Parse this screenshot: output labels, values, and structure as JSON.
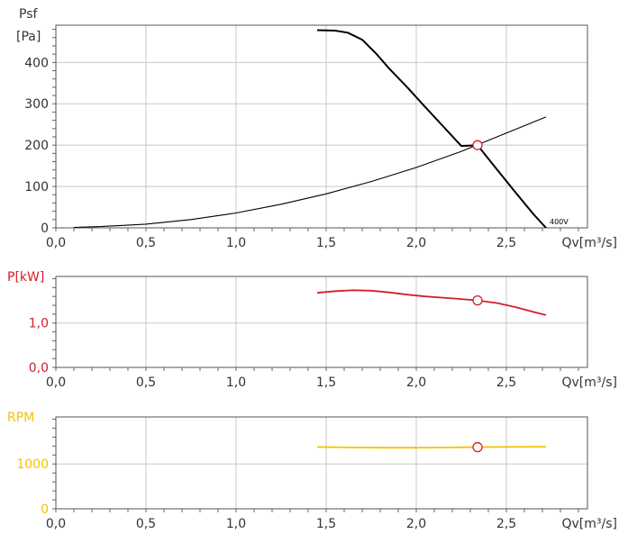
{
  "chart_data": [
    {
      "type": "line",
      "panel": "pressure",
      "ylabel_lines": [
        "Psf",
        "[Pa]"
      ],
      "xlabel": "Qv[m³/s]",
      "xlim": [
        0,
        2.95
      ],
      "ylim": [
        0,
        490
      ],
      "x_ticks": [
        "0,0",
        "0,5",
        "1,0",
        "1,5",
        "2,0",
        "2,5"
      ],
      "y_ticks": [
        "0",
        "100",
        "200",
        "300",
        "400"
      ],
      "grid": true,
      "series": [
        {
          "name": "400V",
          "color": "#000000",
          "x": [
            1.45,
            1.55,
            1.62,
            1.7,
            1.78,
            1.85,
            1.95,
            2.05,
            2.15,
            2.25,
            2.34,
            2.45,
            2.55,
            2.65,
            2.72
          ],
          "y": [
            478,
            477,
            472,
            455,
            420,
            385,
            340,
            292,
            245,
            198,
            200,
            140,
            86,
            33,
            0
          ]
        },
        {
          "name": "",
          "color": "#000000",
          "x": [
            0.1,
            0.25,
            0.5,
            0.75,
            1.0,
            1.25,
            1.5,
            1.75,
            2.0,
            2.25,
            2.5,
            2.72
          ],
          "y": [
            1,
            3,
            9,
            20,
            36,
            57,
            82,
            112,
            146,
            185,
            229,
            268
          ]
        }
      ],
      "operating_point": {
        "x": 2.34,
        "y": 200
      }
    },
    {
      "type": "line",
      "panel": "power",
      "ylabel": "P[kW]",
      "xlabel": "Qv[m³/s]",
      "xlim": [
        0,
        2.95
      ],
      "ylim": [
        0,
        2.05
      ],
      "x_ticks": [
        "0,0",
        "0,5",
        "1,0",
        "1,5",
        "2,0",
        "2,5"
      ],
      "y_ticks": [
        "0,0",
        "1,0"
      ],
      "grid": true,
      "color": "#d22027",
      "series": [
        {
          "name": "",
          "x": [
            1.45,
            1.55,
            1.65,
            1.75,
            1.85,
            1.95,
            2.05,
            2.15,
            2.25,
            2.34,
            2.45,
            2.55,
            2.65,
            2.72
          ],
          "y": [
            1.68,
            1.72,
            1.74,
            1.73,
            1.69,
            1.64,
            1.6,
            1.57,
            1.54,
            1.51,
            1.45,
            1.36,
            1.25,
            1.18
          ]
        }
      ],
      "operating_point": {
        "x": 2.34,
        "y": 1.51
      }
    },
    {
      "type": "line",
      "panel": "speed",
      "ylabel": "RPM",
      "xlabel": "Qv[m³/s]",
      "xlim": [
        0,
        2.95
      ],
      "ylim": [
        0,
        2050
      ],
      "x_ticks": [
        "0,0",
        "0,5",
        "1,0",
        "1,5",
        "2,0",
        "2,5"
      ],
      "y_ticks": [
        "0",
        "1000"
      ],
      "grid": true,
      "color": "#f5c200",
      "series": [
        {
          "name": "",
          "x": [
            1.45,
            1.65,
            1.85,
            2.05,
            2.25,
            2.45,
            2.72
          ],
          "y": [
            1378,
            1368,
            1362,
            1365,
            1372,
            1378,
            1385
          ]
        }
      ],
      "operating_point": {
        "x": 2.34,
        "y": 1375
      }
    }
  ]
}
